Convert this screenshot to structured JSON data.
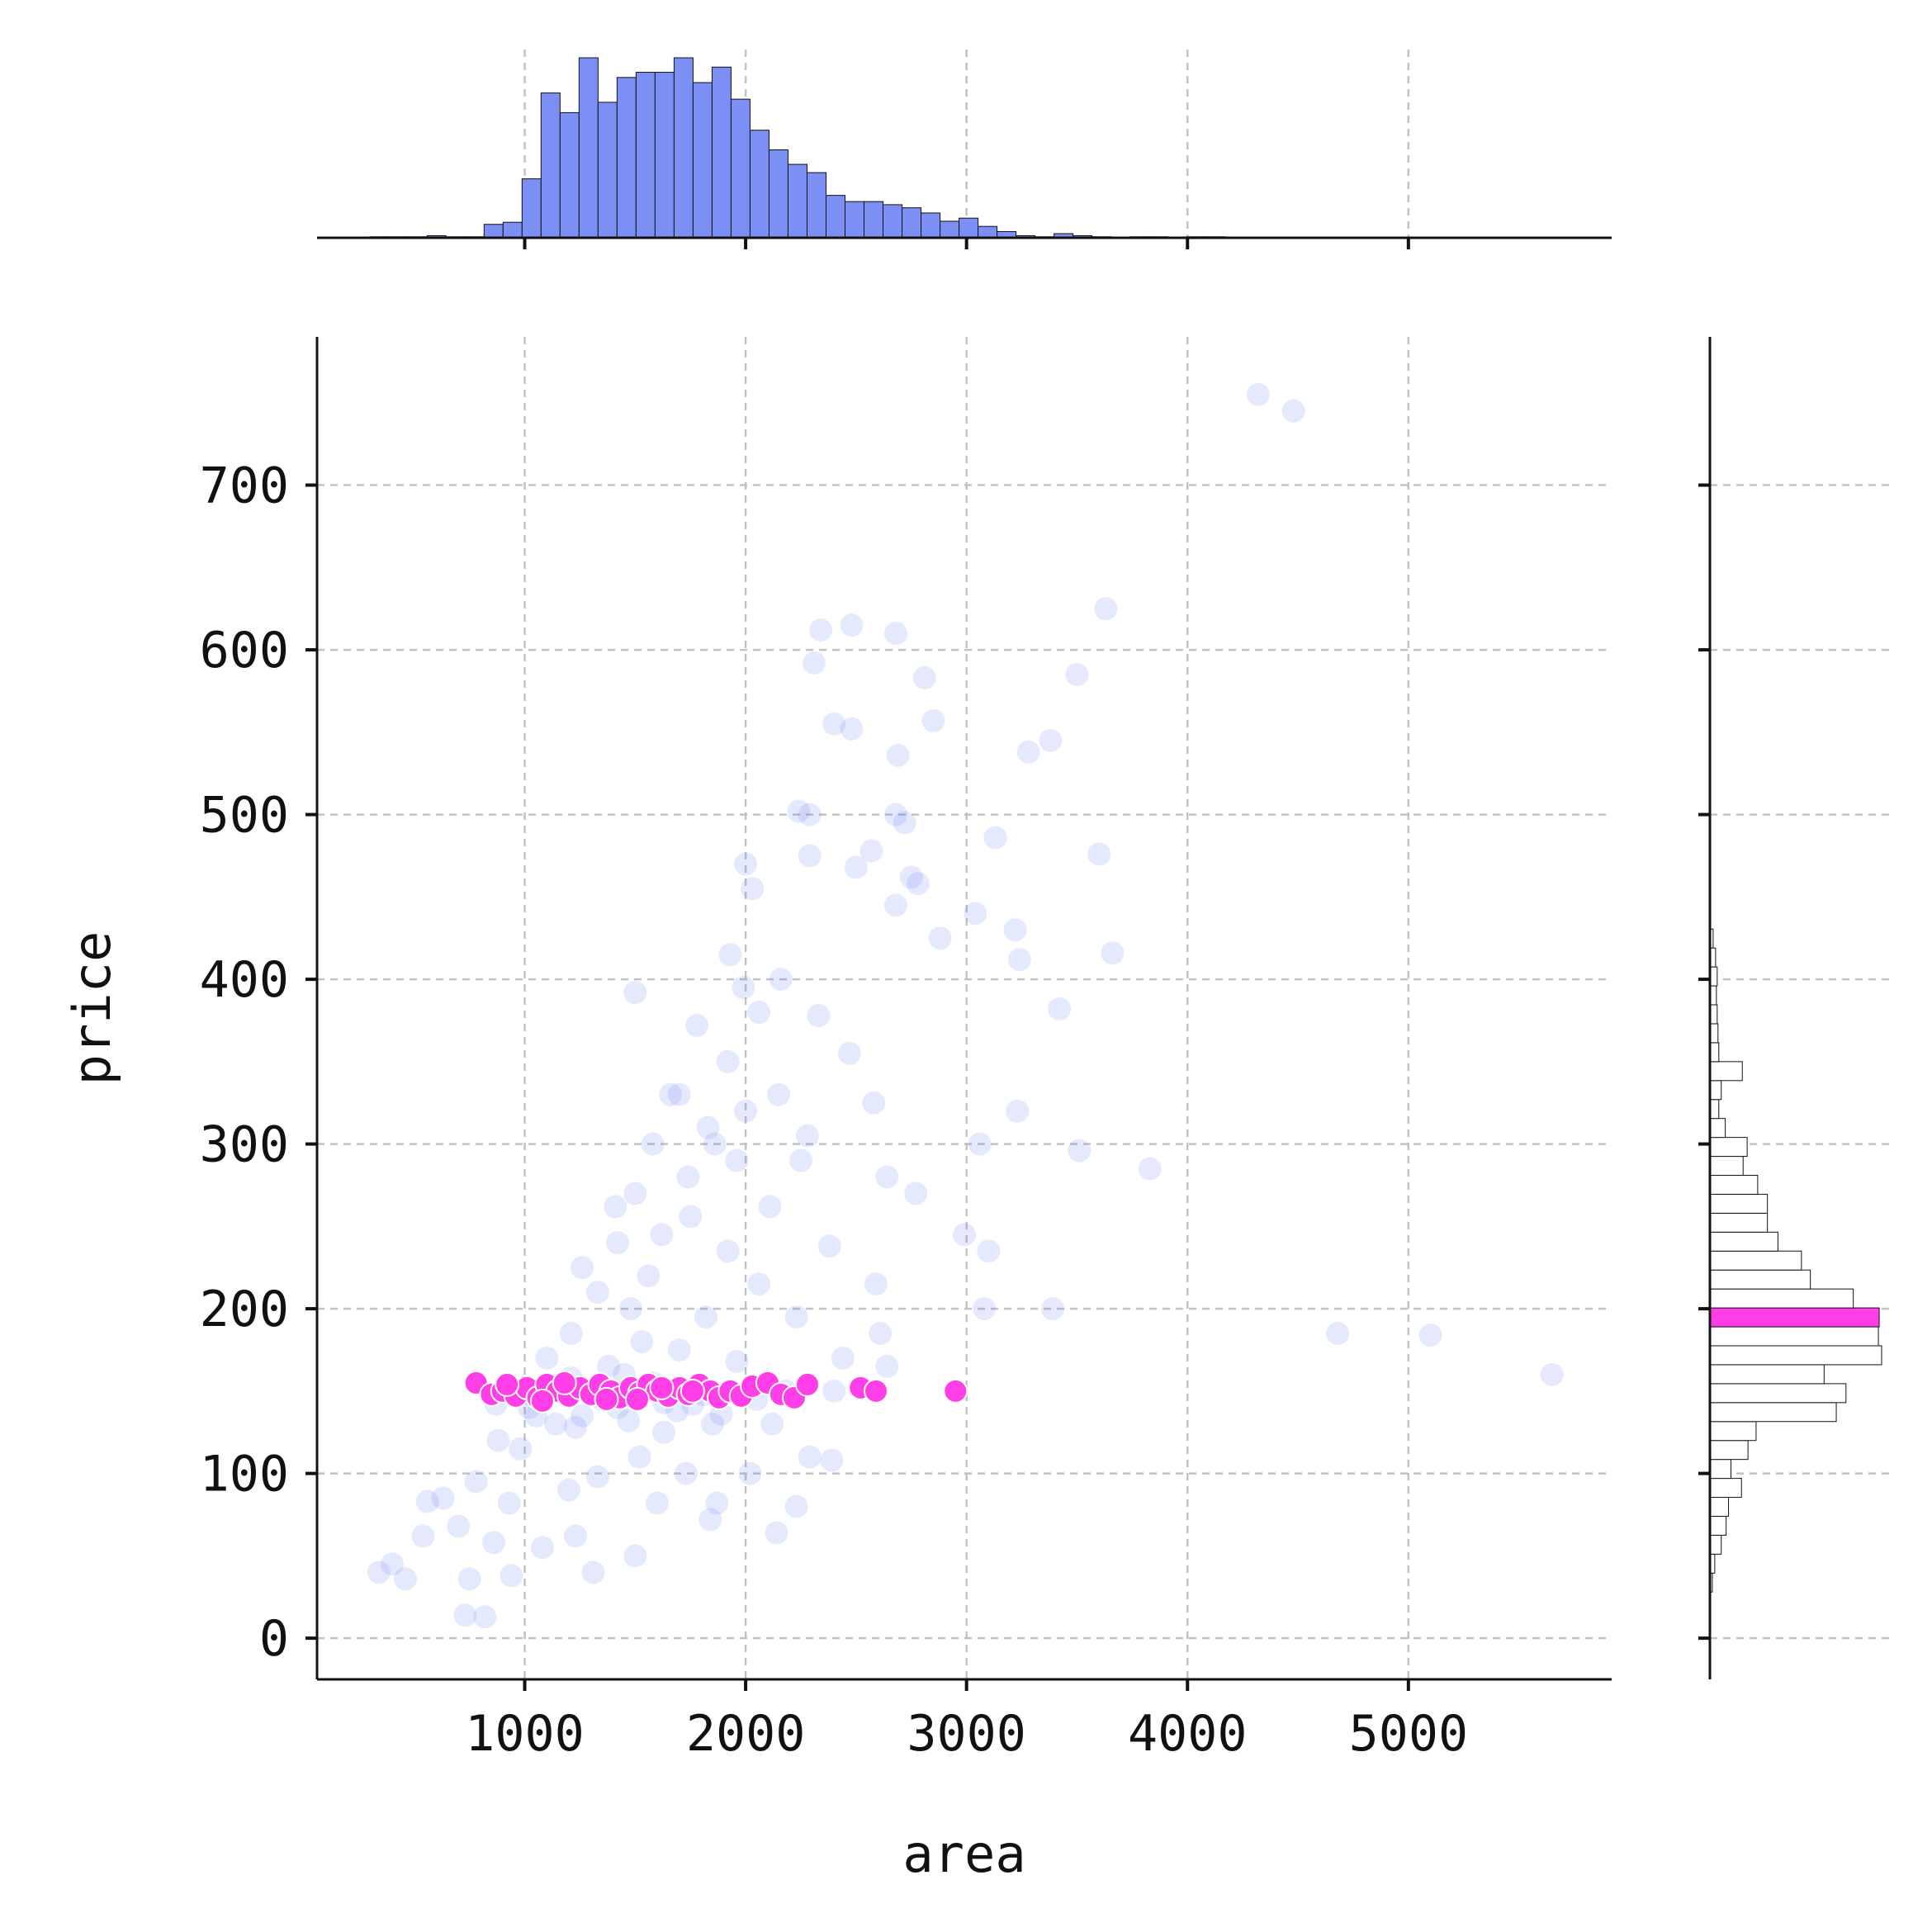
{
  "chart_data": {
    "type": "scatter",
    "title": "",
    "xlabel": "area",
    "ylabel": "price",
    "xlim": [
      60,
      5920
    ],
    "ylim": [
      -25,
      790
    ],
    "x_ticks": [
      "1000",
      "2000",
      "3000",
      "4000",
      "5000"
    ],
    "y_ticks": [
      "0",
      "100",
      "200",
      "300",
      "400",
      "500",
      "600",
      "700"
    ],
    "grid": true,
    "legend": "none",
    "colors": {
      "main_points": "#6b85f5",
      "highlight_points": "#ff3ee8",
      "top_hist_fill": "#7b8ff5",
      "right_hist_fill": "#ffffff",
      "right_hist_highlight": "#ff3ee8",
      "bar_edge": "#111111"
    },
    "highlight_band": {
      "price_range": [
        140,
        155
      ]
    },
    "sample_points": [
      [
        4320,
        755
      ],
      [
        4480,
        745
      ],
      [
        3630,
        625
      ],
      [
        2480,
        615
      ],
      [
        2340,
        612
      ],
      [
        2680,
        610
      ],
      [
        2310,
        592
      ],
      [
        3500,
        585
      ],
      [
        2810,
        583
      ],
      [
        2850,
        557
      ],
      [
        2400,
        555
      ],
      [
        3380,
        545
      ],
      [
        2480,
        552
      ],
      [
        3280,
        538
      ],
      [
        2690,
        536
      ],
      [
        2240,
        502
      ],
      [
        2290,
        500
      ],
      [
        2680,
        500
      ],
      [
        2720,
        495
      ],
      [
        3130,
        486
      ],
      [
        3600,
        476
      ],
      [
        2570,
        478
      ],
      [
        2290,
        475
      ],
      [
        2000,
        470
      ],
      [
        2500,
        468
      ],
      [
        2750,
        462
      ],
      [
        2780,
        458
      ],
      [
        2030,
        455
      ],
      [
        3220,
        430
      ],
      [
        2680,
        445
      ],
      [
        3660,
        416
      ],
      [
        3040,
        440
      ],
      [
        3240,
        412
      ],
      [
        3420,
        382
      ],
      [
        1930,
        415
      ],
      [
        2880,
        425
      ],
      [
        3510,
        296
      ],
      [
        3830,
        285
      ],
      [
        3060,
        300
      ],
      [
        3230,
        320
      ],
      [
        2990,
        245
      ],
      [
        3100,
        235
      ],
      [
        3080,
        200
      ],
      [
        3390,
        200
      ],
      [
        4680,
        185
      ],
      [
        5100,
        184
      ],
      [
        5650,
        160
      ],
      [
        1500,
        392
      ],
      [
        1780,
        372
      ],
      [
        1990,
        395
      ],
      [
        2160,
        400
      ],
      [
        2060,
        380
      ],
      [
        2470,
        355
      ],
      [
        2330,
        378
      ],
      [
        2580,
        325
      ],
      [
        1700,
        330
      ],
      [
        1830,
        310
      ],
      [
        1580,
        300
      ],
      [
        1960,
        290
      ],
      [
        2280,
        305
      ],
      [
        2110,
        262
      ],
      [
        1750,
        256
      ],
      [
        1410,
        262
      ],
      [
        2640,
        280
      ],
      [
        2770,
        270
      ],
      [
        1620,
        245
      ],
      [
        1920,
        235
      ],
      [
        1260,
        225
      ],
      [
        2380,
        238
      ],
      [
        2590,
        215
      ],
      [
        2060,
        215
      ],
      [
        1480,
        200
      ],
      [
        1330,
        210
      ],
      [
        1210,
        185
      ],
      [
        1820,
        195
      ],
      [
        2230,
        195
      ],
      [
        2610,
        185
      ],
      [
        1700,
        175
      ],
      [
        1100,
        170
      ],
      [
        1380,
        165
      ],
      [
        2440,
        170
      ],
      [
        2640,
        165
      ],
      [
        1960,
        168
      ],
      [
        1530,
        180
      ],
      [
        1140,
        130
      ],
      [
        1020,
        140
      ],
      [
        1260,
        135
      ],
      [
        880,
        120
      ],
      [
        980,
        115
      ],
      [
        1630,
        125
      ],
      [
        1850,
        130
      ],
      [
        2120,
        130
      ],
      [
        2290,
        110
      ],
      [
        2390,
        108
      ],
      [
        1520,
        110
      ],
      [
        1730,
        100
      ],
      [
        1330,
        98
      ],
      [
        1200,
        90
      ],
      [
        780,
        95
      ],
      [
        630,
        85
      ],
      [
        560,
        83
      ],
      [
        930,
        82
      ],
      [
        1870,
        82
      ],
      [
        1600,
        82
      ],
      [
        2020,
        100
      ],
      [
        700,
        68
      ],
      [
        540,
        62
      ],
      [
        860,
        58
      ],
      [
        1230,
        62
      ],
      [
        1840,
        72
      ],
      [
        2140,
        64
      ],
      [
        2230,
        80
      ],
      [
        1500,
        50
      ],
      [
        1310,
        40
      ],
      [
        400,
        45
      ],
      [
        340,
        40
      ],
      [
        460,
        36
      ],
      [
        750,
        36
      ],
      [
        940,
        38
      ],
      [
        730,
        14
      ],
      [
        820,
        13
      ],
      [
        1080,
        55
      ],
      [
        1420,
        140
      ],
      [
        1680,
        150
      ],
      [
        1900,
        148
      ],
      [
        960,
        150
      ],
      [
        1120,
        152
      ],
      [
        1350,
        145
      ],
      [
        1580,
        155
      ],
      [
        1760,
        142
      ],
      [
        2050,
        145
      ],
      [
        1210,
        158
      ],
      [
        1450,
        160
      ],
      [
        1020,
        148
      ],
      [
        870,
        142
      ],
      [
        2180,
        150
      ],
      [
        1630,
        143
      ],
      [
        1300,
        150
      ],
      [
        1810,
        148
      ],
      [
        2400,
        150
      ],
      [
        1050,
        135
      ],
      [
        1470,
        132
      ],
      [
        1690,
        138
      ],
      [
        1230,
        128
      ],
      [
        1890,
        136
      ],
      [
        1560,
        220
      ],
      [
        1420,
        240
      ],
      [
        1740,
        280
      ],
      [
        1860,
        300
      ],
      [
        2000,
        320
      ],
      [
        1500,
        270
      ],
      [
        1660,
        330
      ],
      [
        1920,
        350
      ],
      [
        2150,
        330
      ],
      [
        2250,
        290
      ]
    ],
    "highlight_points": [
      [
        780,
        155
      ],
      [
        850,
        148
      ],
      [
        900,
        150
      ],
      [
        960,
        147
      ],
      [
        1010,
        152
      ],
      [
        1060,
        146
      ],
      [
        1100,
        154
      ],
      [
        1150,
        150
      ],
      [
        1200,
        147
      ],
      [
        1250,
        152
      ],
      [
        1300,
        148
      ],
      [
        1340,
        154
      ],
      [
        1390,
        150
      ],
      [
        1430,
        146
      ],
      [
        1480,
        152
      ],
      [
        1520,
        149
      ],
      [
        1560,
        154
      ],
      [
        1600,
        150
      ],
      [
        1650,
        147
      ],
      [
        1700,
        152
      ],
      [
        1740,
        148
      ],
      [
        1790,
        154
      ],
      [
        1840,
        150
      ],
      [
        1880,
        146
      ],
      [
        1930,
        150
      ],
      [
        1980,
        147
      ],
      [
        2030,
        153
      ],
      [
        2100,
        155
      ],
      [
        2160,
        148
      ],
      [
        2220,
        146
      ],
      [
        2280,
        154
      ],
      [
        920,
        154
      ],
      [
        1080,
        144
      ],
      [
        1180,
        155
      ],
      [
        1370,
        145
      ],
      [
        1510,
        145
      ],
      [
        1620,
        152
      ],
      [
        1760,
        150
      ],
      [
        2520,
        152
      ],
      [
        2590,
        150
      ],
      [
        2950,
        150
      ]
    ],
    "top_hist": {
      "bin_start": 300,
      "bin_width": 86,
      "counts": [
        1,
        1,
        1,
        2,
        1,
        1,
        13,
        15,
        57,
        140,
        121,
        174,
        131,
        155,
        160,
        160,
        174,
        150,
        165,
        134,
        104,
        85,
        71,
        63,
        41,
        35,
        35,
        32,
        29,
        24,
        16,
        19,
        11,
        6,
        2,
        1,
        4,
        2,
        1,
        0,
        1,
        1,
        0,
        1,
        1,
        0,
        0,
        0,
        0,
        0,
        0,
        0,
        0,
        0,
        0,
        0,
        0,
        0,
        0,
        0,
        0,
        0,
        0,
        0,
        0
      ]
    },
    "right_hist": {
      "bin_start": 5,
      "bin_width": 11.5,
      "counts": [
        1,
        1,
        3,
        6,
        14,
        20,
        23,
        39,
        26,
        47,
        57,
        156,
        168,
        141,
        212,
        208,
        209,
        177,
        124,
        113,
        84,
        71,
        71,
        59,
        41,
        46,
        19,
        11,
        14,
        40,
        11,
        10,
        9,
        8,
        9,
        7,
        4,
        1,
        1,
        1,
        1,
        1,
        0,
        0,
        0,
        0,
        0,
        1
      ],
      "highlight_bin": 16
    }
  }
}
